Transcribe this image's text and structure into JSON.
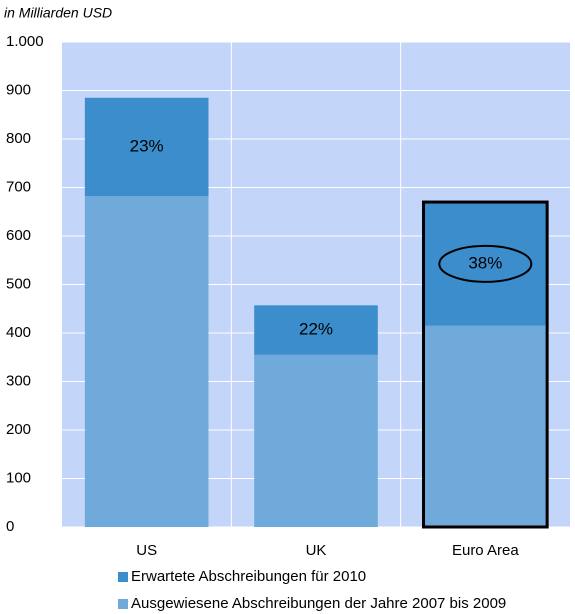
{
  "chart_data": {
    "type": "stacked-bar",
    "unit_label": "in Milliarden USD",
    "categories": [
      "US",
      "UK",
      "Euro Area"
    ],
    "series": [
      {
        "name": "Ausgewiesene Abschreibungen der Jahre 2007 bis 2009",
        "color": "#70aadb",
        "values": [
          682,
          355,
          415
        ]
      },
      {
        "name": "Erwartete Abschreibungen für 2010",
        "color": "#3b8dcb",
        "values": [
          203,
          102,
          255
        ],
        "annotations": [
          "23%",
          "22%",
          "38%"
        ]
      }
    ],
    "ylim": [
      0,
      1000
    ],
    "yticks": [
      0,
      100,
      200,
      300,
      400,
      500,
      600,
      700,
      800,
      900,
      {
        "value": 1000,
        "label": "1.000"
      }
    ],
    "grid": true,
    "plot_background": "#c3d5f8",
    "highlight": 2,
    "legend": "bottom"
  }
}
